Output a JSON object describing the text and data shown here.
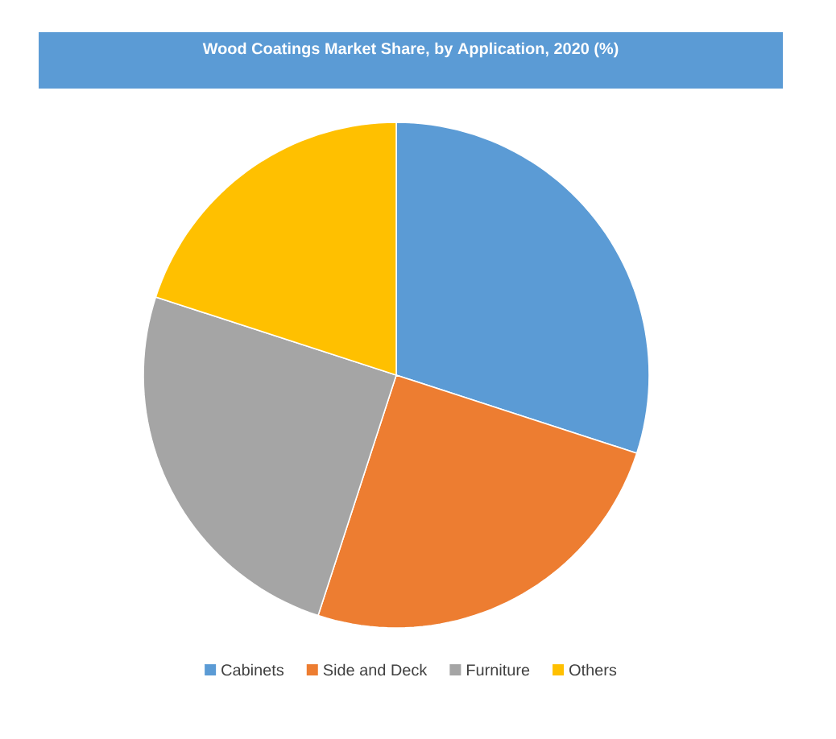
{
  "chart_data": {
    "type": "pie",
    "title": "Wood Coatings Market Share, by Application, 2020 (%)",
    "categories": [
      "Cabinets",
      "Side and Deck",
      "Furniture",
      "Others"
    ],
    "values": [
      30,
      25,
      25,
      20
    ],
    "colors": [
      "#5b9bd5",
      "#ed7d31",
      "#a5a5a5",
      "#ffc000"
    ],
    "legend": "bottom"
  }
}
